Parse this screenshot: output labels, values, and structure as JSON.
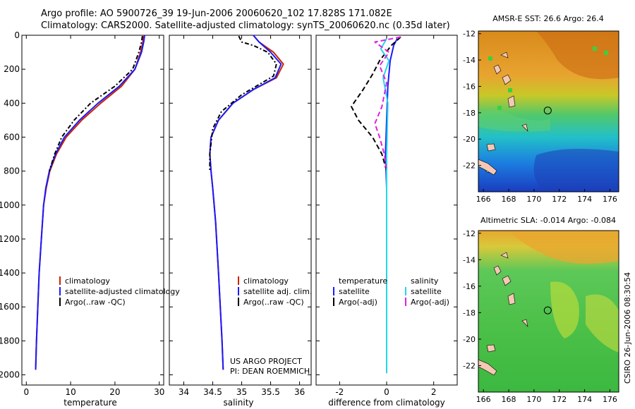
{
  "title": {
    "line1": "Argo profile: AO 5900726_39 19-Jun-2006 20060620_102 17.828S 171.082E",
    "line2": "Climatology: CARS2000. Satellite-adjusted climatology: synTS_20060620.nc (0.35d later)"
  },
  "credit": "CSIRO 26-Jun-2006 08:30:54",
  "project": {
    "line1": "US ARGO PROJECT",
    "line2": "PI: DEAN ROEMMICH"
  },
  "colors": {
    "climatology": "#cc2200",
    "satellite": "#1a1aff",
    "argo": "#000000",
    "argo_sal_diff": "#e020e0",
    "sat_sal_diff": "#22d8e8"
  },
  "chart_data": [
    {
      "type": "line",
      "xlabel": "temperature",
      "xlim": [
        -1,
        31
      ],
      "xticks": [
        0,
        10,
        20,
        30
      ],
      "ylim": [
        2060,
        0
      ],
      "yticks": [
        0,
        200,
        400,
        600,
        800,
        1000,
        1200,
        1400,
        1600,
        1800,
        2000
      ],
      "legend": [
        "climatology",
        "satellite-adjusted climatology",
        "Argo(..raw -QC)"
      ],
      "series": [
        {
          "name": "climatology",
          "color": "#cc2200",
          "dash": "",
          "x": [
            26.5,
            26.3,
            25.8,
            24.5,
            21.5,
            16.8,
            12.5,
            9.0,
            6.8,
            5.3,
            4.5,
            3.9,
            3.4,
            2.9,
            2.6,
            2.3,
            2.1
          ],
          "y": [
            0,
            40,
            100,
            200,
            300,
            400,
            500,
            600,
            700,
            800,
            900,
            1000,
            1200,
            1400,
            1600,
            1800,
            1970
          ]
        },
        {
          "name": "satellite-adjusted climatology",
          "color": "#1a1aff",
          "dash": "",
          "x": [
            26.7,
            26.5,
            26.0,
            24.5,
            21.0,
            16.2,
            12.0,
            8.6,
            6.6,
            5.2,
            4.4,
            3.9,
            3.4,
            2.9,
            2.6,
            2.3,
            2.1
          ],
          "y": [
            0,
            40,
            100,
            200,
            300,
            400,
            500,
            600,
            700,
            800,
            900,
            1000,
            1200,
            1400,
            1600,
            1800,
            1970
          ]
        },
        {
          "name": "Argo(..raw -QC)",
          "color": "#000000",
          "dash": "6,3,2,3",
          "x": [
            26.2,
            26.0,
            25.4,
            24.0,
            20.0,
            14.5,
            10.8,
            8.0,
            6.4,
            5.2
          ],
          "y": [
            5,
            40,
            100,
            200,
            300,
            400,
            500,
            600,
            700,
            800
          ]
        }
      ]
    },
    {
      "type": "line",
      "xlabel": "salinity",
      "xlim": [
        33.75,
        36.2
      ],
      "xticks": [
        34,
        34.5,
        35,
        35.5,
        36
      ],
      "ylim": [
        2060,
        0
      ],
      "legend": [
        "climatology",
        "satellite adj. clim.",
        "Argo(..raw -QC)"
      ],
      "series": [
        {
          "name": "climatology",
          "color": "#cc2200",
          "dash": "",
          "x": [
            35.2,
            35.3,
            35.55,
            35.72,
            35.6,
            35.2,
            34.85,
            34.6,
            34.47,
            34.45,
            34.47,
            34.5,
            34.55,
            34.6,
            34.63,
            34.66,
            34.68
          ],
          "y": [
            0,
            40,
            100,
            170,
            250,
            320,
            400,
            500,
            600,
            700,
            800,
            900,
            1100,
            1400,
            1600,
            1800,
            1970
          ]
        },
        {
          "name": "satellite adj. clim.",
          "color": "#1a1aff",
          "dash": "",
          "x": [
            35.2,
            35.3,
            35.5,
            35.68,
            35.58,
            35.2,
            34.85,
            34.6,
            34.47,
            34.45,
            34.47,
            34.5,
            34.55,
            34.6,
            34.63,
            34.66,
            34.68
          ],
          "y": [
            0,
            40,
            100,
            170,
            250,
            320,
            400,
            500,
            600,
            700,
            800,
            900,
            1100,
            1400,
            1600,
            1800,
            1970
          ]
        },
        {
          "name": "Argo(..raw -QC)",
          "color": "#000000",
          "dash": "6,3,2,3",
          "x": [
            34.95,
            35.0,
            35.2,
            35.45,
            35.6,
            35.55,
            35.0,
            34.65,
            34.5,
            34.45,
            34.45
          ],
          "y": [
            5,
            40,
            60,
            100,
            170,
            240,
            350,
            450,
            550,
            700,
            800
          ]
        }
      ]
    },
    {
      "type": "line",
      "xlabel": "difference from climatology",
      "xlim": [
        -3,
        3
      ],
      "xticks": [
        -2,
        0,
        2
      ],
      "ylim": [
        2060,
        0
      ],
      "legend": [
        "temperature",
        "satellite",
        "Argo(-adj)",
        "salinity",
        "satellite",
        "Argo(-adj)"
      ],
      "series": [
        {
          "name": "temperature satellite",
          "color": "#1a1aff",
          "dash": "",
          "x": [
            0.45,
            0.3,
            0.15,
            0.05,
            0.0,
            -0.05,
            0.0,
            0.0,
            0.0
          ],
          "y": [
            20,
            60,
            150,
            300,
            500,
            700,
            900,
            1400,
            1990
          ]
        },
        {
          "name": "temperature Argo(-adj)",
          "color": "#000000",
          "dash": "7,4",
          "x": [
            0.6,
            0.2,
            -0.3,
            -0.6,
            -1.0,
            -1.5,
            -1.2,
            -0.6,
            -0.2,
            0.0
          ],
          "y": [
            10,
            60,
            150,
            230,
            320,
            420,
            500,
            600,
            700,
            800
          ]
        },
        {
          "name": "salinity satellite",
          "color": "#22d8e8",
          "dash": "",
          "x": [
            0.0,
            -0.25,
            0.1,
            -0.15,
            0.05,
            0.0,
            0.0,
            0.0
          ],
          "y": [
            20,
            80,
            150,
            250,
            400,
            700,
            1000,
            1990
          ]
        },
        {
          "name": "salinity Argo(-adj)",
          "color": "#e020e0",
          "dash": "7,4",
          "x": [
            0.6,
            -0.5,
            0.1,
            -0.3,
            0.0,
            -0.2,
            -0.5,
            -0.3,
            -0.1,
            0.0
          ],
          "y": [
            10,
            40,
            100,
            180,
            280,
            420,
            520,
            600,
            700,
            800
          ]
        }
      ]
    },
    {
      "type": "heatmap",
      "title": "AMSR-E SST: 26.6  Argo: 26.4",
      "xlim": [
        165.6,
        176.7
      ],
      "xticks": [
        166,
        168,
        170,
        172,
        174,
        176
      ],
      "ylim": [
        -24.0,
        -11.8
      ],
      "yticks": [
        -12,
        -14,
        -16,
        -18,
        -20,
        -22
      ],
      "marker": {
        "lon": 171.082,
        "lat": -17.828
      }
    },
    {
      "type": "heatmap",
      "title": "Altimetric SLA: -0.014  Argo: -0.084",
      "xlim": [
        165.6,
        176.7
      ],
      "xticks": [
        166,
        168,
        170,
        172,
        174,
        176
      ],
      "ylim": [
        -24.0,
        -11.8
      ],
      "yticks": [
        -12,
        -14,
        -16,
        -18,
        -20,
        -22
      ],
      "marker": {
        "lon": 171.082,
        "lat": -17.828
      }
    }
  ]
}
